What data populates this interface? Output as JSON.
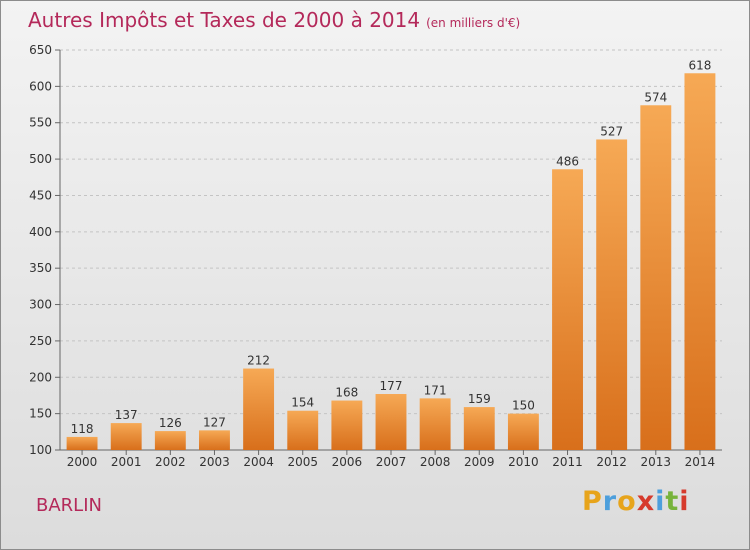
{
  "title": "Autres Impôts et Taxes de 2000 à 2014",
  "title_unit": "(en milliers d'€)",
  "city": "BARLIN",
  "logo": {
    "letters": [
      "P",
      "r",
      "o",
      "x",
      "i",
      "t",
      "i"
    ],
    "colors": [
      "#e7a41b",
      "#4d9fdc",
      "#e7a41b",
      "#d63a2c",
      "#4d9fdc",
      "#77b33b",
      "#d63a2c"
    ]
  },
  "colors": {
    "title": "#b4295a",
    "bar_light": "#f6a955",
    "bar_dark": "#d86f1b"
  },
  "chart_data": {
    "type": "bar",
    "categories": [
      "2000",
      "2001",
      "2002",
      "2003",
      "2004",
      "2005",
      "2006",
      "2007",
      "2008",
      "2009",
      "2010",
      "2011",
      "2012",
      "2013",
      "2014"
    ],
    "values": [
      118,
      137,
      126,
      127,
      212,
      154,
      168,
      177,
      171,
      159,
      150,
      486,
      527,
      574,
      618
    ],
    "ylim": [
      100,
      650
    ],
    "yticks": [
      100,
      150,
      200,
      250,
      300,
      350,
      400,
      450,
      500,
      550,
      600,
      650
    ],
    "grid": true,
    "legend": "none"
  }
}
